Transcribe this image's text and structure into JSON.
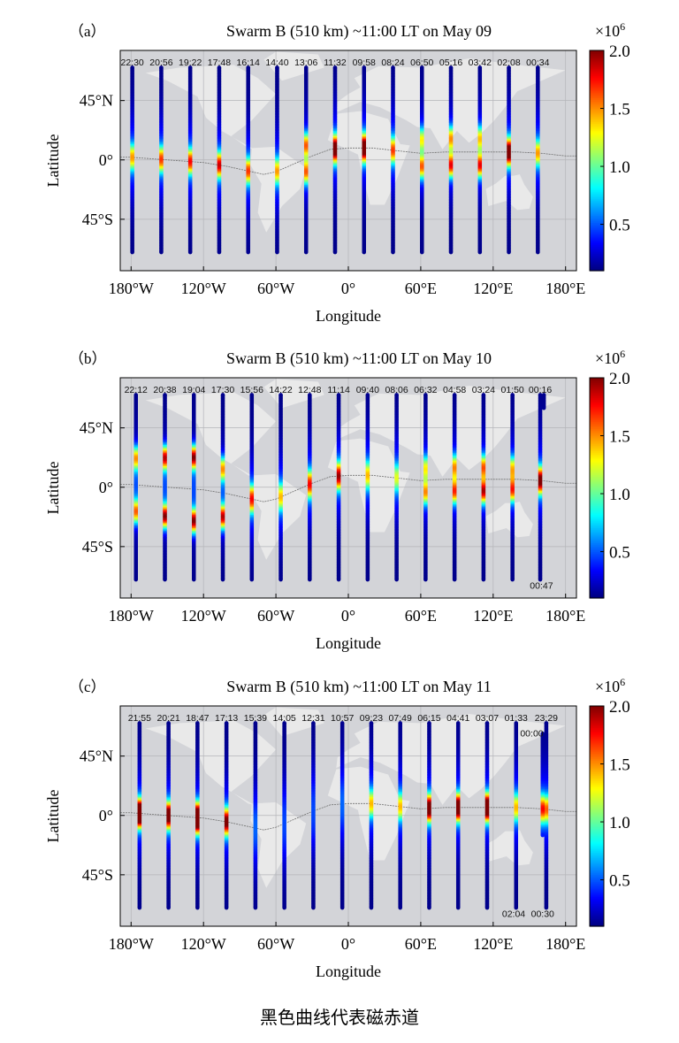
{
  "caption": "黑色曲线代表磁赤道",
  "chart_data": [
    {
      "type": "scatter",
      "panel_label": "（a）",
      "title": "Swarm B (510 km) ~11:00 LT on May 09",
      "xlabel": "Longitude",
      "ylabel": "Latitude",
      "xlim": [
        -189,
        189
      ],
      "ylim": [
        -84,
        83
      ],
      "xticks": [
        -180,
        -120,
        -60,
        0,
        60,
        120,
        180
      ],
      "xtick_labels": [
        "180°W",
        "120°W",
        "60°W",
        "0°",
        "60°E",
        "120°E",
        "180°E"
      ],
      "yticks": [
        45,
        0,
        -45
      ],
      "ytick_labels": [
        "45°N",
        "0°",
        "45°S"
      ],
      "grid": true,
      "colorbar": {
        "range": [
          0.1,
          2.0
        ],
        "ticks": [
          0.5,
          1.0,
          1.5,
          2.0
        ],
        "tick_labels": [
          "0.5",
          "1.0",
          "1.5",
          "2.0"
        ],
        "multiplier": "×10",
        "exponent": "6",
        "colormap": "jet"
      },
      "track_lat_range": [
        -70,
        70
      ],
      "tracks": [
        {
          "time": "22:30",
          "lon": -179,
          "north_crest": 1.0,
          "south_crest": 1.0,
          "crest_offset_deg": 2
        },
        {
          "time": "20:56",
          "lon": -155,
          "north_crest": 1.1,
          "south_crest": 1.1,
          "crest_offset_deg": 2
        },
        {
          "time": "19:22",
          "lon": -131,
          "north_crest": 1.15,
          "south_crest": 1.15,
          "crest_offset_deg": 2
        },
        {
          "time": "17:48",
          "lon": -107,
          "north_crest": 1.2,
          "south_crest": 1.2,
          "crest_offset_deg": 2
        },
        {
          "time": "16:14",
          "lon": -83,
          "north_crest": 1.1,
          "south_crest": 1.1,
          "crest_offset_deg": 2
        },
        {
          "time": "14:40",
          "lon": -59,
          "north_crest": 1.0,
          "south_crest": 1.0,
          "crest_offset_deg": 2
        },
        {
          "time": "13:06",
          "lon": -35,
          "north_crest": 1.6,
          "south_crest": 1.6,
          "crest_offset_deg": 10
        },
        {
          "time": "11:32",
          "lon": -11,
          "north_crest": 1.5,
          "south_crest": 1.5,
          "crest_offset_deg": 3
        },
        {
          "time": "09:58",
          "lon": 13,
          "north_crest": 1.55,
          "south_crest": 1.55,
          "crest_offset_deg": 3
        },
        {
          "time": "08:24",
          "lon": 37,
          "north_crest": 1.1,
          "south_crest": 1.1,
          "crest_offset_deg": 2
        },
        {
          "time": "06:50",
          "lon": 61,
          "north_crest": 1.3,
          "south_crest": 1.6,
          "crest_offset_deg": 10
        },
        {
          "time": "05:16",
          "lon": 85,
          "north_crest": 1.5,
          "south_crest": 1.8,
          "crest_offset_deg": 10
        },
        {
          "time": "03:42",
          "lon": 109,
          "north_crest": 1.4,
          "south_crest": 1.8,
          "crest_offset_deg": 10
        },
        {
          "time": "02:08",
          "lon": 133,
          "north_crest": 1.5,
          "south_crest": 1.5,
          "crest_offset_deg": 3
        },
        {
          "time": "00:34",
          "lon": 157,
          "north_crest": 1.0,
          "south_crest": 1.0,
          "crest_offset_deg": 2
        }
      ],
      "extra_tracks": [],
      "annotations": []
    },
    {
      "type": "scatter",
      "panel_label": "（b）",
      "title": "Swarm B (510 km) ~11:00 LT on May 10",
      "xlabel": "Longitude",
      "ylabel": "Latitude",
      "xlim": [
        -189,
        189
      ],
      "ylim": [
        -84,
        83
      ],
      "xticks": [
        -180,
        -120,
        -60,
        0,
        60,
        120,
        180
      ],
      "xtick_labels": [
        "180°W",
        "120°W",
        "60°W",
        "0°",
        "60°E",
        "120°E",
        "180°E"
      ],
      "yticks": [
        45,
        0,
        -45
      ],
      "ytick_labels": [
        "45°N",
        "0°",
        "45°S"
      ],
      "grid": true,
      "colorbar": {
        "range": [
          0.1,
          2.0
        ],
        "ticks": [
          0.5,
          1.0,
          1.5,
          2.0
        ],
        "tick_labels": [
          "0.5",
          "1.0",
          "1.5",
          "2.0"
        ],
        "multiplier": "×10",
        "exponent": "6",
        "colormap": "jet"
      },
      "track_lat_range": [
        -70,
        70
      ],
      "tracks": [
        {
          "time": "22:12",
          "lon": -176,
          "north_crest": 1.5,
          "south_crest": 1.6,
          "crest_offset_deg": 20
        },
        {
          "time": "20:38",
          "lon": -152,
          "north_crest": 1.9,
          "south_crest": 2.0,
          "crest_offset_deg": 22
        },
        {
          "time": "19:04",
          "lon": -128,
          "north_crest": 2.0,
          "south_crest": 2.0,
          "crest_offset_deg": 24
        },
        {
          "time": "17:30",
          "lon": -104,
          "north_crest": 1.5,
          "south_crest": 1.9,
          "crest_offset_deg": 18
        },
        {
          "time": "15:56",
          "lon": -80,
          "north_crest": 1.2,
          "south_crest": 1.2,
          "crest_offset_deg": 3
        },
        {
          "time": "14:22",
          "lon": -56,
          "north_crest": 1.0,
          "south_crest": 1.0,
          "crest_offset_deg": 3
        },
        {
          "time": "12:48",
          "lon": -32,
          "north_crest": 1.2,
          "south_crest": 1.2,
          "crest_offset_deg": 3
        },
        {
          "time": "11:14",
          "lon": -8,
          "north_crest": 1.3,
          "south_crest": 1.3,
          "crest_offset_deg": 3
        },
        {
          "time": "09:40",
          "lon": 16,
          "north_crest": 1.0,
          "south_crest": 1.0,
          "crest_offset_deg": 3
        },
        {
          "time": "08:06",
          "lon": 40,
          "north_crest": 0.9,
          "south_crest": 0.9,
          "crest_offset_deg": 3
        },
        {
          "time": "06:32",
          "lon": 64,
          "north_crest": 1.3,
          "south_crest": 1.5,
          "crest_offset_deg": 9
        },
        {
          "time": "04:58",
          "lon": 88,
          "north_crest": 1.5,
          "south_crest": 1.7,
          "crest_offset_deg": 9
        },
        {
          "time": "03:24",
          "lon": 112,
          "north_crest": 1.6,
          "south_crest": 1.9,
          "crest_offset_deg": 9
        },
        {
          "time": "01:50",
          "lon": 136,
          "north_crest": 1.4,
          "south_crest": 1.7,
          "crest_offset_deg": 8
        },
        {
          "time": "00:16",
          "lon": 159,
          "north_crest": 1.4,
          "south_crest": 1.4,
          "crest_offset_deg": 3
        }
      ],
      "extra_tracks": [
        {
          "lon": 162,
          "lat_range": [
            60,
            70
          ],
          "north_crest": 0.1,
          "south_crest": 0.1,
          "crest_offset_deg": 3
        }
      ],
      "annotations": [
        {
          "text": "00:47",
          "lon": 160,
          "lat": -77
        }
      ]
    },
    {
      "type": "scatter",
      "panel_label": "（c）",
      "title": "Swarm B (510 km) ~11:00 LT on May 11",
      "xlabel": "Longitude",
      "ylabel": "Latitude",
      "xlim": [
        -189,
        189
      ],
      "ylim": [
        -84,
        83
      ],
      "xticks": [
        -180,
        -120,
        -60,
        0,
        60,
        120,
        180
      ],
      "xtick_labels": [
        "180°W",
        "120°W",
        "60°W",
        "0°",
        "60°E",
        "120°E",
        "180°E"
      ],
      "yticks": [
        45,
        0,
        -45
      ],
      "ytick_labels": [
        "45°N",
        "0°",
        "45°S"
      ],
      "grid": true,
      "colorbar": {
        "range": [
          0.1,
          2.0
        ],
        "ticks": [
          0.5,
          1.0,
          1.5,
          2.0
        ],
        "tick_labels": [
          "0.5",
          "1.0",
          "1.5",
          "2.0"
        ],
        "multiplier": "×10",
        "exponent": "6",
        "colormap": "jet"
      },
      "track_lat_range": [
        -70,
        70
      ],
      "tracks": [
        {
          "time": "21:55",
          "lon": -173,
          "north_crest": 1.85,
          "south_crest": 1.85,
          "crest_offset_deg": 3
        },
        {
          "time": "20:21",
          "lon": -149,
          "north_crest": 1.5,
          "south_crest": 1.5,
          "crest_offset_deg": 3
        },
        {
          "time": "18:47",
          "lon": -125,
          "north_crest": 1.7,
          "south_crest": 2.0,
          "crest_offset_deg": 4
        },
        {
          "time": "17:13",
          "lon": -101,
          "north_crest": 1.4,
          "south_crest": 1.4,
          "crest_offset_deg": 3
        },
        {
          "time": "15:39",
          "lon": -77,
          "north_crest": 0.5,
          "south_crest": 0.5,
          "crest_offset_deg": 3
        },
        {
          "time": "14:05",
          "lon": -53,
          "north_crest": 0.3,
          "south_crest": 0.3,
          "crest_offset_deg": 3
        },
        {
          "time": "12:31",
          "lon": -29,
          "north_crest": 0.4,
          "south_crest": 0.4,
          "crest_offset_deg": 3
        },
        {
          "time": "10:57",
          "lon": -5,
          "north_crest": 0.5,
          "south_crest": 0.5,
          "crest_offset_deg": 3
        },
        {
          "time": "09:23",
          "lon": 19,
          "north_crest": 1.0,
          "south_crest": 1.0,
          "crest_offset_deg": 3
        },
        {
          "time": "07:49",
          "lon": 43,
          "north_crest": 1.0,
          "south_crest": 1.0,
          "crest_offset_deg": 3
        },
        {
          "time": "06:15",
          "lon": 67,
          "north_crest": 1.5,
          "south_crest": 1.5,
          "crest_offset_deg": 3
        },
        {
          "time": "04:41",
          "lon": 91,
          "north_crest": 1.55,
          "south_crest": 1.55,
          "crest_offset_deg": 3
        },
        {
          "time": "03:07",
          "lon": 115,
          "north_crest": 1.65,
          "south_crest": 1.65,
          "crest_offset_deg": 3
        },
        {
          "time": "01:33",
          "lon": 139,
          "north_crest": 1.0,
          "south_crest": 1.0,
          "crest_offset_deg": 3
        },
        {
          "time": "23:29",
          "lon": 164,
          "north_crest": 1.1,
          "south_crest": 1.1,
          "crest_offset_deg": 3
        }
      ],
      "extra_tracks": [
        {
          "lon": 161,
          "lat_range": [
            -15,
            62
          ],
          "north_crest": 1.2,
          "south_crest": 1.2,
          "crest_offset_deg": 3
        }
      ],
      "annotations": [
        {
          "text": "00:00",
          "lon": 152,
          "lat": 60
        },
        {
          "text": "02:04",
          "lon": 137,
          "lat": -77
        },
        {
          "text": "00:30",
          "lon": 161,
          "lat": -77
        }
      ]
    }
  ],
  "magnetic_equator": {
    "color": "#707070",
    "points": [
      [
        -189,
        2
      ],
      [
        -180,
        2
      ],
      [
        -150,
        0
      ],
      [
        -120,
        -2
      ],
      [
        -100,
        -5
      ],
      [
        -80,
        -9
      ],
      [
        -70,
        -11
      ],
      [
        -60,
        -9
      ],
      [
        -45,
        -3
      ],
      [
        -30,
        3
      ],
      [
        -15,
        8
      ],
      [
        0,
        9
      ],
      [
        20,
        9
      ],
      [
        40,
        7
      ],
      [
        60,
        5
      ],
      [
        80,
        6
      ],
      [
        100,
        6
      ],
      [
        120,
        6
      ],
      [
        140,
        6
      ],
      [
        160,
        5
      ],
      [
        180,
        3
      ],
      [
        189,
        3
      ]
    ]
  },
  "map_background_color": "#d3d4d8",
  "land_color": "#ececec"
}
